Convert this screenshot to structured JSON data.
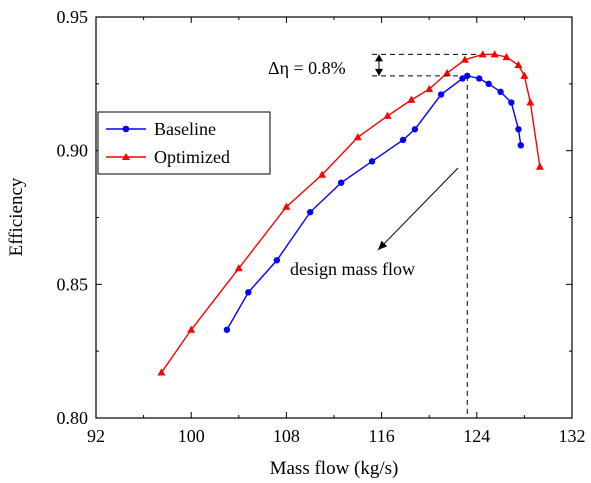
{
  "chart_data": {
    "type": "line",
    "xlabel": "Mass flow (kg/s)",
    "ylabel": "Efficiency",
    "xlim": [
      92,
      132
    ],
    "ylim": [
      0.8,
      0.95
    ],
    "xticks": [
      "92",
      "100",
      "108",
      "116",
      "124",
      "132"
    ],
    "yticks": [
      "0.80",
      "0.85",
      "0.90",
      "0.95"
    ],
    "legend_placement": "center-left",
    "series": [
      {
        "name": "Baseline",
        "color": "#0000ff",
        "marker": "circle",
        "x": [
          103.0,
          104.8,
          107.2,
          110.0,
          112.6,
          115.2,
          117.8,
          118.8,
          121.0,
          122.8,
          123.2,
          124.2,
          125.0,
          126.0,
          126.9,
          127.5,
          127.7
        ],
        "y": [
          0.833,
          0.847,
          0.859,
          0.877,
          0.888,
          0.896,
          0.904,
          0.908,
          0.921,
          0.927,
          0.928,
          0.927,
          0.925,
          0.922,
          0.918,
          0.908,
          0.902
        ]
      },
      {
        "name": "Optimized",
        "color": "#ff0000",
        "marker": "triangle",
        "x": [
          97.5,
          100.0,
          104.0,
          108.0,
          111.0,
          114.0,
          116.5,
          118.5,
          120.0,
          121.5,
          123.0,
          124.5,
          125.5,
          126.5,
          127.5,
          128.0,
          128.5,
          129.3
        ],
        "y": [
          0.817,
          0.833,
          0.856,
          0.879,
          0.891,
          0.905,
          0.913,
          0.919,
          0.923,
          0.929,
          0.934,
          0.936,
          0.936,
          0.935,
          0.932,
          0.928,
          0.918,
          0.894
        ]
      }
    ],
    "annotations": {
      "delta_label": "Δη = 0.8%",
      "delta_y_top": 0.936,
      "delta_y_bottom": 0.928,
      "design_label": "design mass flow",
      "design_x": 123.2
    }
  }
}
